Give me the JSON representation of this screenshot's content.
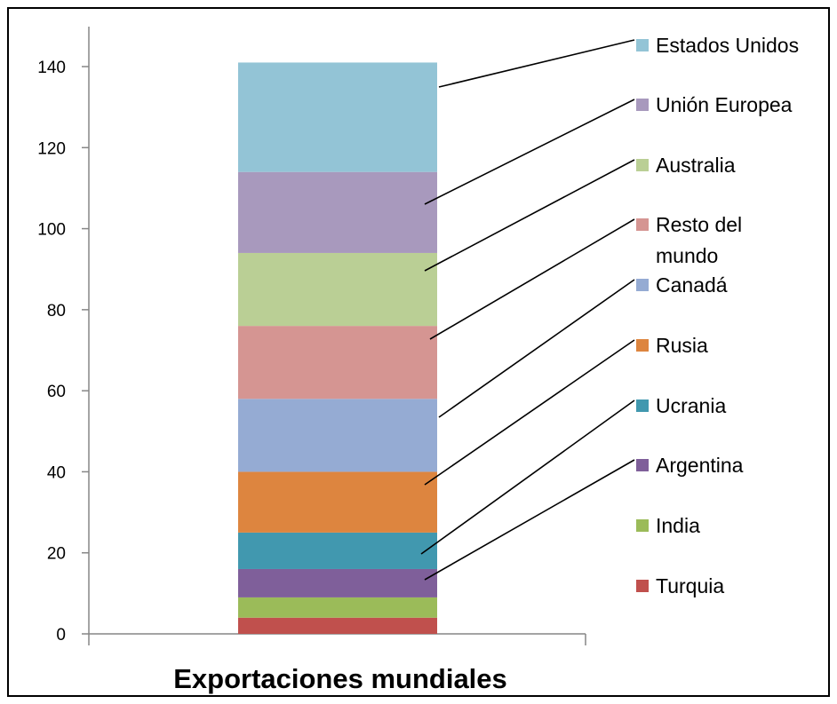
{
  "chart_data": {
    "type": "bar",
    "stacked": true,
    "categories": [
      ""
    ],
    "xlabel": "Exportaciones mundiales",
    "ylim": [
      0,
      150
    ],
    "yticks": [
      0,
      20,
      40,
      60,
      80,
      100,
      120,
      140
    ],
    "grid": false,
    "legend_position": "right",
    "series": [
      {
        "name": "Turquia",
        "values": [
          4
        ],
        "color": "#c0504d"
      },
      {
        "name": "India",
        "values": [
          5
        ],
        "color": "#9bbb59"
      },
      {
        "name": "Argentina",
        "values": [
          7
        ],
        "color": "#7f5f9a"
      },
      {
        "name": "Ucrania",
        "values": [
          9
        ],
        "color": "#4198af"
      },
      {
        "name": "Rusia",
        "values": [
          15
        ],
        "color": "#dd853f"
      },
      {
        "name": "Canadá",
        "values": [
          18
        ],
        "color": "#95abd3"
      },
      {
        "name": "Resto del mundo",
        "values": [
          18
        ],
        "color": "#d59592"
      },
      {
        "name": "Australia",
        "values": [
          18
        ],
        "color": "#bacf95"
      },
      {
        "name": "Unión Europea",
        "values": [
          20
        ],
        "color": "#a899bd"
      },
      {
        "name": "Estados Unidos",
        "values": [
          27
        ],
        "color": "#93c4d6"
      }
    ]
  }
}
